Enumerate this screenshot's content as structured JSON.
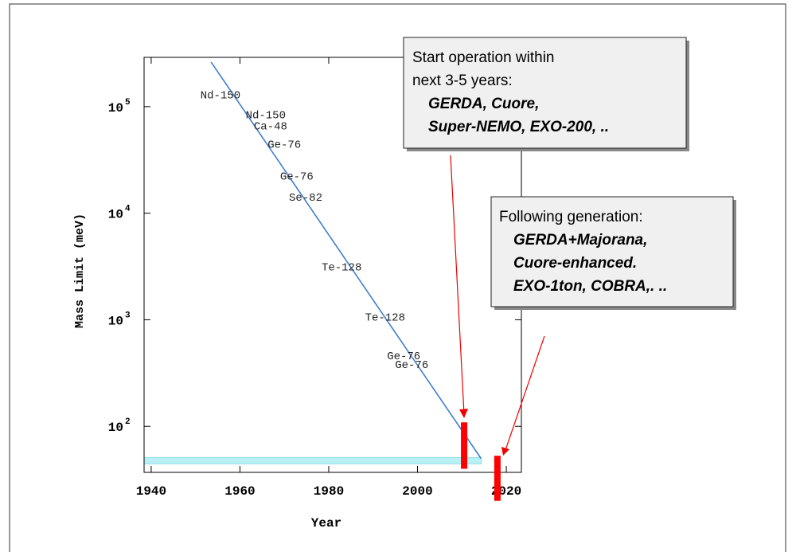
{
  "chart_data": {
    "type": "scatter",
    "xlabel": "Year",
    "ylabel": "Mass Limit (meV)",
    "log_y": true,
    "xlim": [
      1938.4,
      2023.4
    ],
    "ylim": [
      37,
      290000
    ],
    "xticks": [
      1940,
      1960,
      1980,
      2000,
      2020
    ],
    "yticks": [
      {
        "value": 100,
        "label": "10",
        "exponent": "2"
      },
      {
        "value": 1000,
        "label": "10",
        "exponent": "3"
      },
      {
        "value": 10000,
        "label": "10",
        "exponent": "4"
      },
      {
        "value": 100000,
        "label": "10",
        "exponent": "5"
      }
    ],
    "points": {
      "labels": [
        "Nd-150",
        "Nd-150",
        "Ca-48",
        "Ge-76",
        "Ge-76",
        "Se-82",
        "Te-128",
        "Te-128",
        "Ge-76",
        "Ge-76"
      ],
      "x": [
        1955.6,
        1965.8,
        1966.9,
        1970.0,
        1972.8,
        1974.8,
        1982.9,
        1992.7,
        1996.9,
        1998.7
      ],
      "values": [
        127000,
        83000,
        65000,
        44000,
        22000,
        14000,
        3100,
        1050,
        455,
        377
      ],
      "color": "#222222"
    },
    "trend": {
      "x": [
        1953.5,
        2014.3
      ],
      "values": [
        262000,
        50
      ],
      "color": "#3f7fd0"
    },
    "band": {
      "x": [
        1938.4,
        2014.4
      ],
      "values": [
        44.5,
        51
      ],
      "color": "#b8f0f4"
    },
    "bars": {
      "x": [
        2010.5,
        2018.0
      ],
      "low": [
        40,
        20
      ],
      "high": [
        109,
        53
      ],
      "color": "#ff0000"
    },
    "annotations": [
      {
        "lines": [
          "Start operation within",
          "next 3-5 years:"
        ],
        "items": [
          "GERDA, Cuore,",
          "Super-NEMO, EXO-200, .."
        ]
      },
      {
        "lines": [
          "Following generation:"
        ],
        "items": [
          "GERDA+Majorana,",
          "Cuore-enhanced.",
          "EXO-1ton, COBRA,. .."
        ]
      }
    ]
  }
}
